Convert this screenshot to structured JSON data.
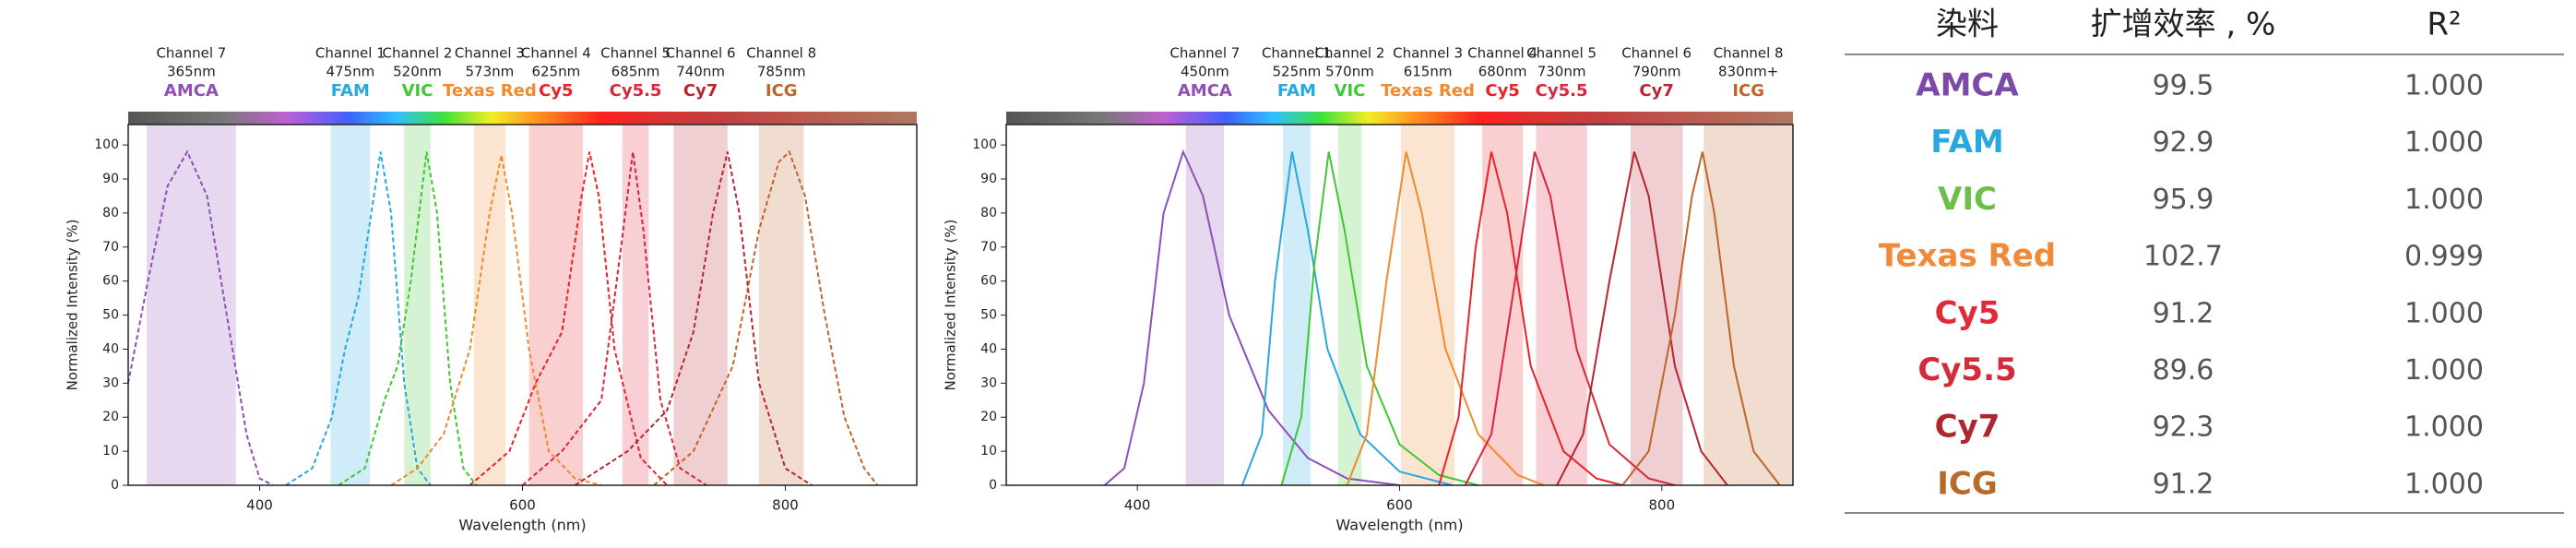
{
  "chart_data": [
    {
      "type": "line",
      "line_style": "dashed",
      "x_label": "Wavelength (nm)",
      "y_label": "Normalized Intensity (%)",
      "xlim": [
        300,
        900
      ],
      "ylim": [
        0,
        106
      ],
      "xticks": [
        400,
        600,
        800
      ],
      "yticks": [
        0,
        10,
        20,
        30,
        40,
        50,
        60,
        70,
        80,
        90,
        100
      ],
      "series": [
        {
          "name": "AMCA",
          "channel": "Channel 7",
          "wavelength": "365nm",
          "color": "#8e4fb8",
          "band": [
            314,
            382
          ],
          "x": [
            300,
            315,
            330,
            345,
            360,
            375,
            390,
            400,
            410
          ],
          "values": [
            30,
            60,
            88,
            98,
            85,
            50,
            15,
            2,
            0
          ]
        },
        {
          "name": "FAM",
          "channel": "Channel 1",
          "wavelength": "475nm",
          "color": "#29a8df",
          "band": [
            454,
            484
          ],
          "x": [
            420,
            440,
            455,
            465,
            475,
            485,
            492,
            500,
            510,
            520,
            530
          ],
          "values": [
            0,
            5,
            20,
            40,
            55,
            80,
            98,
            80,
            30,
            5,
            0
          ]
        },
        {
          "name": "VIC",
          "channel": "Channel 2",
          "wavelength": "520nm",
          "color": "#3fc832",
          "band": [
            510,
            530
          ],
          "x": [
            460,
            480,
            495,
            505,
            515,
            527,
            535,
            545,
            555,
            565
          ],
          "values": [
            0,
            5,
            25,
            35,
            60,
            98,
            80,
            30,
            5,
            0
          ]
        },
        {
          "name": "Texas Red",
          "channel": "Channel 3",
          "wavelength": "573nm",
          "color": "#f08a2a",
          "band": [
            563,
            587
          ],
          "x": [
            500,
            520,
            540,
            560,
            575,
            584,
            592,
            605,
            620,
            640,
            660
          ],
          "values": [
            0,
            5,
            15,
            40,
            80,
            97,
            80,
            40,
            10,
            2,
            0
          ]
        },
        {
          "name": "Cy5",
          "channel": "Channel 4",
          "wavelength": "625nm",
          "color": "#e8232a",
          "band": [
            605,
            646
          ],
          "x": [
            560,
            590,
            610,
            630,
            645,
            651,
            658,
            670,
            690,
            710
          ],
          "values": [
            0,
            10,
            30,
            45,
            85,
            98,
            85,
            40,
            8,
            0
          ]
        },
        {
          "name": "Cy5.5",
          "channel": "Channel 5",
          "wavelength": "685nm",
          "color": "#d9263c",
          "band": [
            676,
            696
          ],
          "x": [
            600,
            630,
            660,
            675,
            684,
            692,
            705,
            720,
            740
          ],
          "values": [
            0,
            10,
            25,
            70,
            98,
            75,
            25,
            5,
            0
          ]
        },
        {
          "name": "Cy7",
          "channel": "Channel 6",
          "wavelength": "740nm",
          "color": "#b82530",
          "band": [
            715,
            756
          ],
          "x": [
            640,
            680,
            710,
            730,
            745,
            756,
            765,
            780,
            800,
            820
          ],
          "values": [
            0,
            10,
            22,
            45,
            80,
            98,
            80,
            30,
            5,
            0
          ]
        },
        {
          "name": "ICG",
          "channel": "Channel 8",
          "wavelength": "785nm",
          "color": "#c0642a",
          "band": [
            780,
            814
          ],
          "x": [
            700,
            730,
            760,
            780,
            795,
            803,
            815,
            830,
            845,
            860,
            870
          ],
          "values": [
            0,
            10,
            35,
            75,
            95,
            98,
            85,
            50,
            20,
            5,
            0
          ]
        }
      ]
    },
    {
      "type": "line",
      "line_style": "solid",
      "x_label": "Wavelength (nm)",
      "y_label": "Normalized Intensity (%)",
      "xlim": [
        300,
        900
      ],
      "ylim": [
        0,
        106
      ],
      "xticks": [
        400,
        600,
        800
      ],
      "yticks": [
        0,
        10,
        20,
        30,
        40,
        50,
        60,
        70,
        80,
        90,
        100
      ],
      "series": [
        {
          "name": "AMCA",
          "channel": "Channel 7",
          "wavelength": "450nm",
          "color": "#8e4fb8",
          "band": [
            437,
            466
          ],
          "x": [
            375,
            390,
            405,
            420,
            435,
            450,
            470,
            500,
            530,
            560,
            600
          ],
          "values": [
            0,
            5,
            30,
            80,
            98,
            85,
            50,
            22,
            8,
            2,
            0
          ]
        },
        {
          "name": "FAM",
          "channel": "Channel 1",
          "wavelength": "525nm",
          "color": "#29a8df",
          "band": [
            511,
            532
          ],
          "x": [
            480,
            495,
            505,
            518,
            530,
            545,
            570,
            600,
            640
          ],
          "values": [
            0,
            15,
            60,
            98,
            75,
            40,
            15,
            4,
            0
          ]
        },
        {
          "name": "VIC",
          "channel": "Channel 2",
          "wavelength": "570nm",
          "color": "#3fc832",
          "band": [
            553,
            571
          ],
          "x": [
            510,
            525,
            535,
            546,
            558,
            575,
            600,
            630,
            660
          ],
          "values": [
            0,
            20,
            65,
            98,
            75,
            35,
            12,
            3,
            0
          ]
        },
        {
          "name": "Texas Red",
          "channel": "Channel 3",
          "wavelength": "615nm",
          "color": "#f08a2a",
          "band": [
            601,
            642
          ],
          "x": [
            560,
            575,
            590,
            605,
            617,
            635,
            660,
            690,
            710
          ],
          "values": [
            0,
            15,
            60,
            98,
            80,
            40,
            15,
            3,
            0
          ]
        },
        {
          "name": "Cy5",
          "channel": "Channel 4",
          "wavelength": "680nm",
          "color": "#e8232a",
          "band": [
            663,
            694
          ],
          "x": [
            630,
            645,
            658,
            670,
            682,
            700,
            725,
            750,
            770
          ],
          "values": [
            0,
            20,
            70,
            98,
            80,
            35,
            10,
            2,
            0
          ]
        },
        {
          "name": "Cy5.5",
          "channel": "Channel 5",
          "wavelength": "730nm",
          "color": "#d9263c",
          "band": [
            704,
            743
          ],
          "x": [
            650,
            670,
            690,
            703,
            715,
            735,
            760,
            790,
            810
          ],
          "values": [
            0,
            15,
            65,
            98,
            85,
            40,
            12,
            2,
            0
          ]
        },
        {
          "name": "Cy7",
          "channel": "Channel 6",
          "wavelength": "790nm",
          "color": "#b82530",
          "band": [
            776,
            816
          ],
          "x": [
            720,
            740,
            760,
            779,
            790,
            810,
            830,
            850
          ],
          "values": [
            0,
            15,
            60,
            98,
            85,
            35,
            10,
            0
          ]
        },
        {
          "name": "ICG",
          "channel": "Channel 8",
          "wavelength": "830nm+",
          "color": "#c0642a",
          "band": [
            832,
            900
          ],
          "x": [
            770,
            790,
            810,
            823,
            831,
            840,
            855,
            870,
            890
          ],
          "values": [
            0,
            10,
            50,
            85,
            98,
            80,
            35,
            10,
            0
          ]
        }
      ]
    }
  ],
  "table": {
    "header": [
      "染料",
      "扩增效率 , %",
      "R²"
    ],
    "rows": [
      {
        "dye": "AMCA",
        "color": "#7b4aa8",
        "efficiency": "99.5",
        "r2": "1.000"
      },
      {
        "dye": "FAM",
        "color": "#29a8df",
        "efficiency": "92.9",
        "r2": "1.000"
      },
      {
        "dye": "VIC",
        "color": "#6cc04a",
        "efficiency": "95.9",
        "r2": "1.000"
      },
      {
        "dye": "Texas Red",
        "color": "#f08a3a",
        "efficiency": "102.7",
        "r2": "0.999"
      },
      {
        "dye": "Cy5",
        "color": "#e02a3a",
        "efficiency": "91.2",
        "r2": "1.000"
      },
      {
        "dye": "Cy5.5",
        "color": "#d42a3a",
        "efficiency": "89.6",
        "r2": "1.000"
      },
      {
        "dye": "Cy7",
        "color": "#b0262e",
        "efficiency": "92.3",
        "r2": "1.000"
      },
      {
        "dye": "ICG",
        "color": "#b86a2a",
        "efficiency": "91.2",
        "r2": "1.000"
      }
    ]
  }
}
